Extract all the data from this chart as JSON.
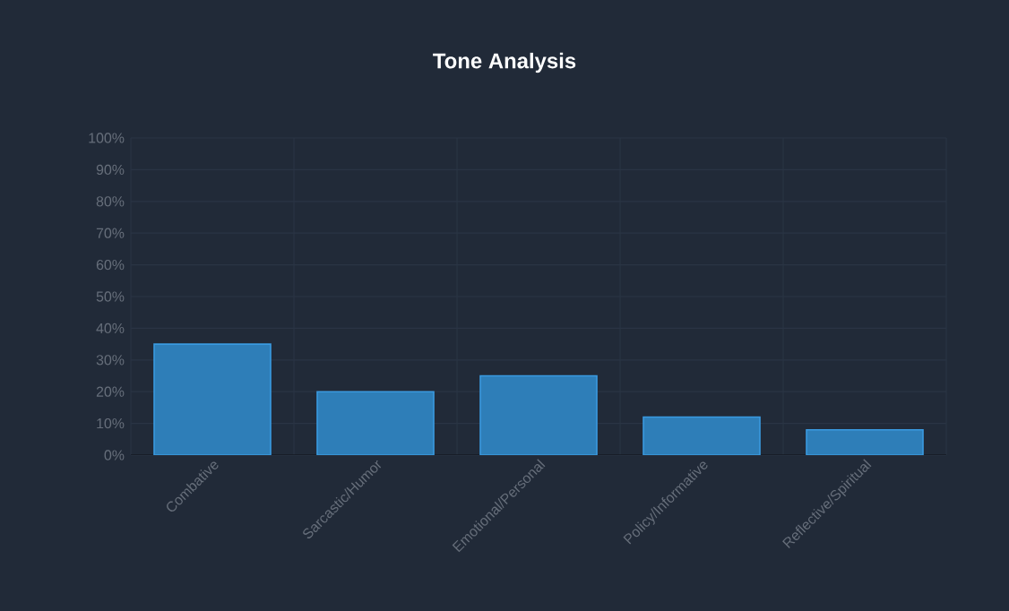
{
  "chart_data": {
    "type": "bar",
    "title": "Tone Analysis",
    "categories": [
      "Combative",
      "Sarcastic/Humor",
      "Emotional/Personal",
      "Policy/Informative",
      "Reflective/Spiritual"
    ],
    "values": [
      35,
      20,
      25,
      12,
      8
    ],
    "color": "#2e7eb8",
    "ylim": [
      0,
      100
    ],
    "yticks": [
      {
        "value": 0,
        "label": "0%"
      },
      {
        "value": 10,
        "label": "10%"
      },
      {
        "value": 20,
        "label": "20%"
      },
      {
        "value": 30,
        "label": "30%"
      },
      {
        "value": 40,
        "label": "40%"
      },
      {
        "value": 50,
        "label": "50%"
      },
      {
        "value": 60,
        "label": "60%"
      },
      {
        "value": 70,
        "label": "70%"
      },
      {
        "value": 80,
        "label": "80%"
      },
      {
        "value": 90,
        "label": "90%"
      },
      {
        "value": 100,
        "label": "100%"
      }
    ],
    "grid": true
  }
}
